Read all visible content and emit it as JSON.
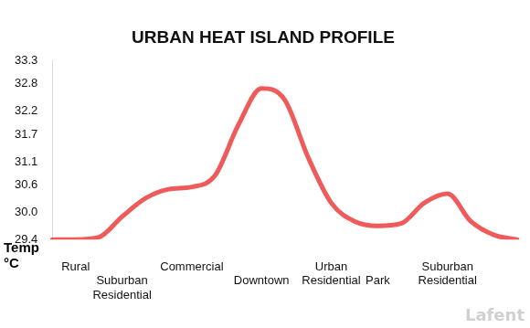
{
  "chart_data": {
    "type": "line",
    "title": "URBAN HEAT ISLAND PROFILE",
    "ylabel": "Temp °C",
    "categories": [
      null,
      "Rural",
      null,
      "Suburban Residential",
      null,
      null,
      "Commercial",
      null,
      null,
      "Downtown",
      null,
      null,
      "Urban Residential",
      null,
      "Park",
      null,
      null,
      "Suburban Residential",
      null,
      null,
      null
    ],
    "values": [
      29.4,
      29.4,
      29.45,
      29.9,
      30.3,
      30.5,
      30.55,
      30.8,
      31.9,
      32.7,
      32.45,
      31.2,
      30.2,
      29.8,
      29.7,
      29.75,
      30.2,
      30.4,
      29.8,
      29.5,
      29.4
    ],
    "color": "#ef5b5b",
    "ylim": [
      29.4,
      33.3
    ],
    "yticks": [
      29.4,
      {
        "value": 30,
        "label": "30.0"
      },
      30.6,
      31.1,
      31.7,
      32.2,
      32.8,
      33.3
    ],
    "grid": false,
    "annotations": [
      "Lafent"
    ]
  }
}
